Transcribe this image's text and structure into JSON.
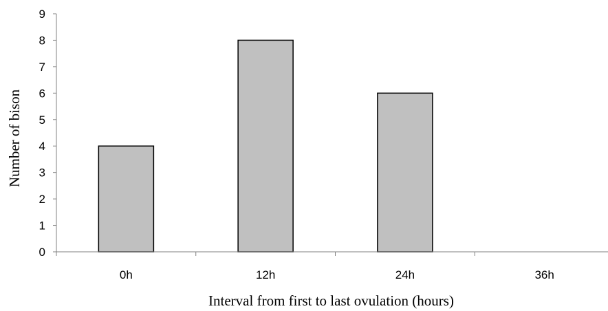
{
  "chart_data": {
    "type": "bar",
    "categories": [
      "0h",
      "12h",
      "24h",
      "36h"
    ],
    "values": [
      4,
      8,
      6,
      0
    ],
    "title": "",
    "xlabel": "Interval from first to last ovulation (hours)",
    "ylabel": "Number of bison",
    "ylim": [
      0,
      9
    ],
    "yticks": [
      "0",
      "1",
      "2",
      "3",
      "4",
      "5",
      "6",
      "7",
      "8",
      "9"
    ],
    "grid": false,
    "legend": "none",
    "bar_color": "#c0c0c0",
    "bar_edge_color": "#000000"
  }
}
